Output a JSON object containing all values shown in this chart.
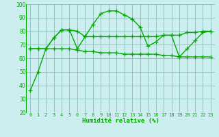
{
  "xlabel": "Humidité relative (%)",
  "x": [
    0,
    1,
    2,
    3,
    4,
    5,
    6,
    7,
    8,
    9,
    10,
    11,
    12,
    13,
    14,
    15,
    16,
    17,
    18,
    19,
    20,
    21,
    22,
    23
  ],
  "line1": [
    36,
    50,
    67,
    75,
    81,
    81,
    67,
    76,
    85,
    93,
    95,
    95,
    92,
    89,
    83,
    69,
    72,
    77,
    77,
    61,
    67,
    73,
    79,
    80
  ],
  "line2": [
    67,
    67,
    67,
    75,
    81,
    81,
    80,
    76,
    76,
    76,
    76,
    76,
    76,
    76,
    76,
    76,
    76,
    77,
    77,
    77,
    79,
    79,
    80,
    80
  ],
  "line3": [
    67,
    67,
    67,
    67,
    67,
    67,
    66,
    65,
    65,
    64,
    64,
    64,
    63,
    63,
    63,
    63,
    63,
    62,
    62,
    61,
    61,
    61,
    61,
    61
  ],
  "line_color": "#00aa00",
  "bg_color": "#cceeee",
  "grid_color": "#88bbbb",
  "ylim": [
    20,
    100
  ],
  "yticks": [
    20,
    30,
    40,
    50,
    60,
    70,
    80,
    90,
    100
  ],
  "marker": "+",
  "markersize": 4,
  "linewidth": 1.0,
  "xtick_fontsize": 5.0,
  "ytick_fontsize": 5.5,
  "xlabel_fontsize": 6.5
}
